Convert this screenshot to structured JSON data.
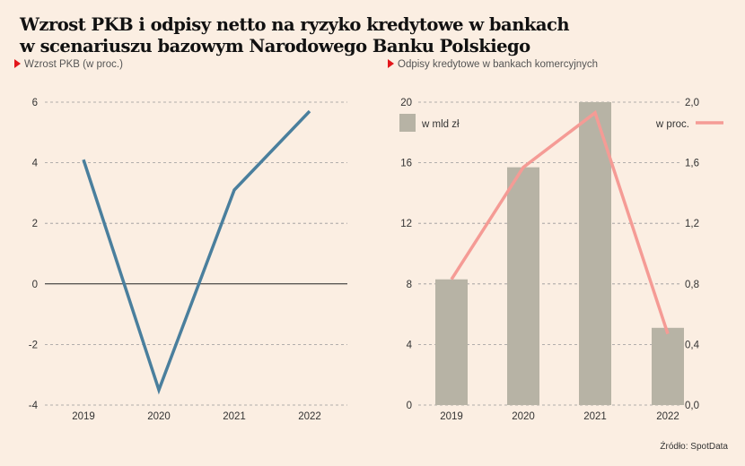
{
  "title_line1": "Wzrost PKB i odpisy netto na ryzyko kredytowe w bankach",
  "title_line2": "w scenariuszu bazowym Narodowego Banku Polskiego",
  "source": "Źródło: SpotData",
  "colors": {
    "gdp_line": "#4a7f9d",
    "bar": "#b7b3a5",
    "pct_line": "#f59b95",
    "marker": "#e3161b",
    "background": "#fbeee2"
  },
  "chart_data": [
    {
      "type": "line",
      "subtitle": "Wzrost PKB (w proc.)",
      "x": [
        "2019",
        "2020",
        "2021",
        "2022"
      ],
      "series": [
        {
          "values": [
            4.1,
            -3.5,
            3.1,
            5.7
          ]
        }
      ],
      "ylim": [
        -4,
        6
      ],
      "yticks": [
        "6",
        "4",
        "2",
        "0",
        "-2",
        "-4"
      ],
      "grid": true
    },
    {
      "type": "bar",
      "subtitle": "Odpisy kredytowe w bankach komercyjnych",
      "categories": [
        "2019",
        "2020",
        "2021",
        "2022"
      ],
      "series": [
        {
          "name": "w mld zł",
          "type": "bar",
          "axis": "left",
          "values": [
            8.3,
            15.7,
            20.0,
            5.1
          ]
        },
        {
          "name": "w proc.",
          "type": "line",
          "axis": "right",
          "values": [
            0.83,
            1.57,
            1.93,
            0.47
          ]
        }
      ],
      "ylim_left": [
        0,
        20
      ],
      "ylim_right": [
        0,
        2.0
      ],
      "yticks_left": [
        "20",
        "16",
        "12",
        "8",
        "4",
        "0"
      ],
      "yticks_right": [
        "2,0",
        "1,6",
        "1,2",
        "0,8",
        "0,4",
        "0,0"
      ],
      "grid": true,
      "legend": "top"
    }
  ]
}
